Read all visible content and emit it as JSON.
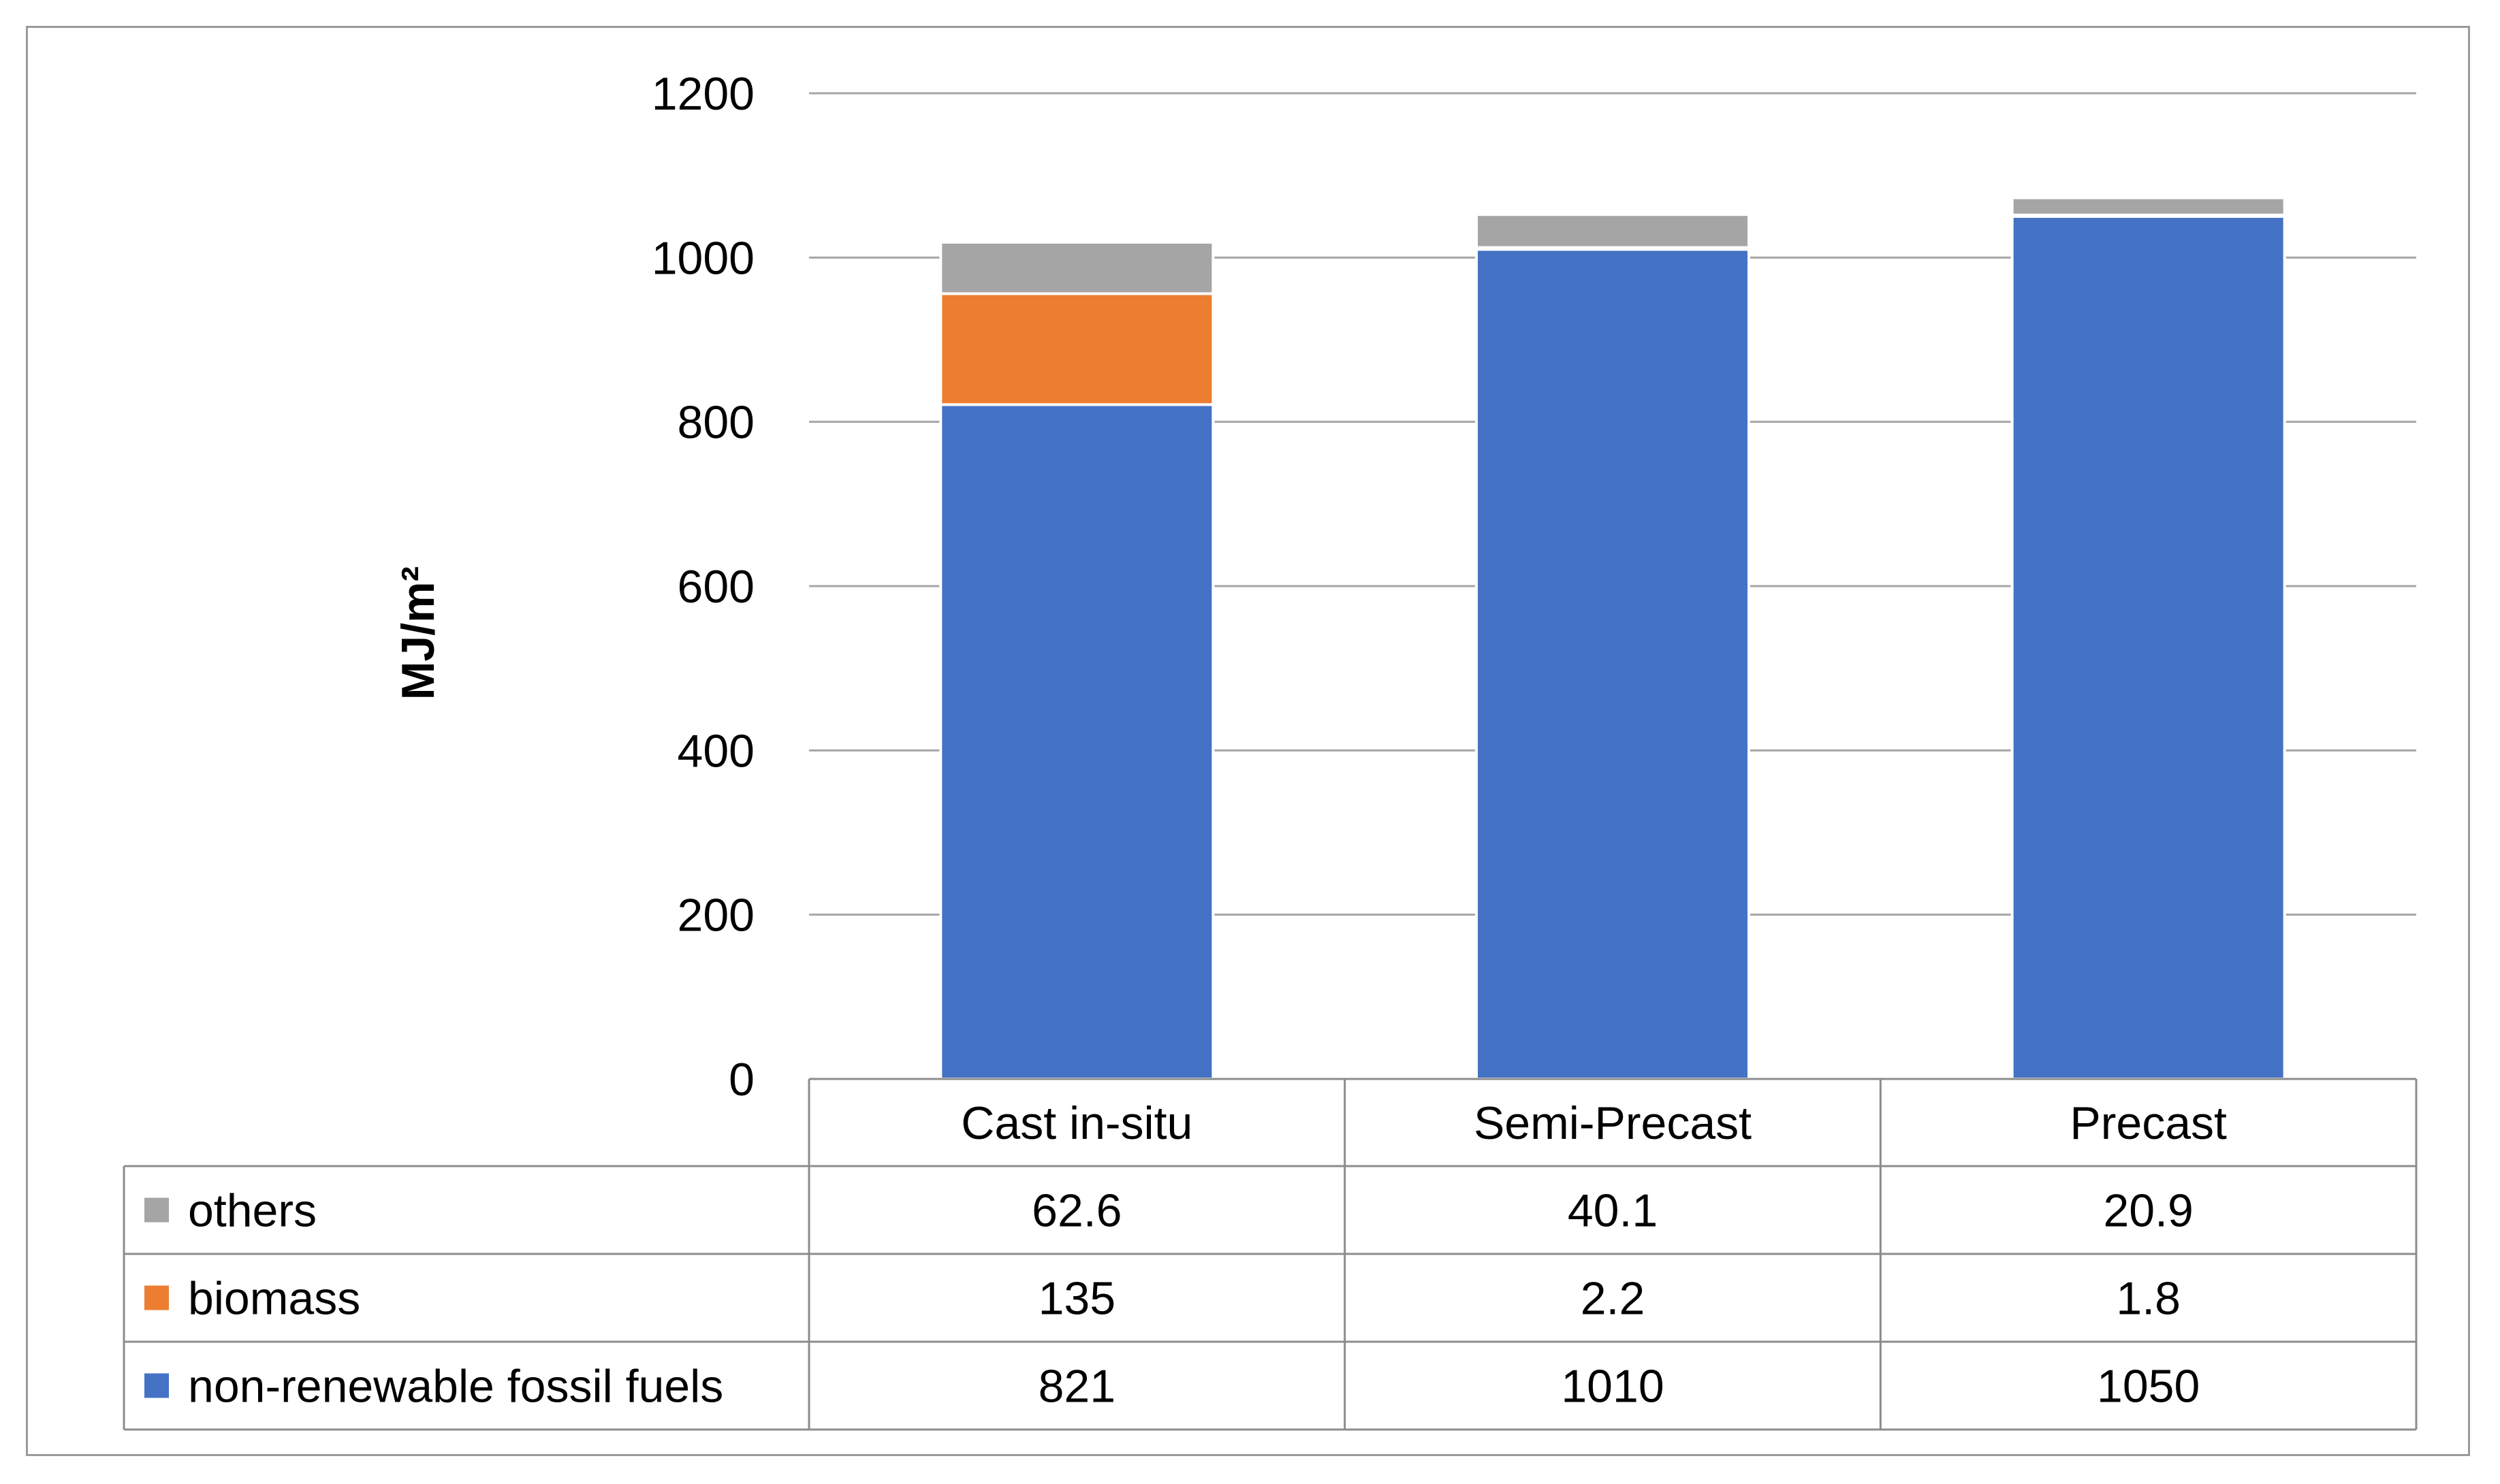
{
  "chart_data": {
    "type": "bar",
    "stacked": true,
    "title": "",
    "xlabel": "",
    "ylabel": "MJ/m²",
    "ylim": [
      0,
      1200
    ],
    "yticks": [
      "0",
      "200",
      "400",
      "600",
      "800",
      "1000",
      "1200"
    ],
    "categories": [
      "Cast in-situ",
      "Semi-Precast",
      "Precast"
    ],
    "grid": true,
    "legend": "data-table",
    "series": [
      {
        "name": "non-renewable fossil fuels",
        "color": "#4472C4",
        "values": [
          821,
          1010,
          1050
        ],
        "labels": [
          "821",
          "1010",
          "1050"
        ]
      },
      {
        "name": "biomass",
        "color": "#ED7D31",
        "values": [
          135,
          2.2,
          1.8
        ],
        "labels": [
          "135",
          "2.2",
          "1.8"
        ]
      },
      {
        "name": "others",
        "color": "#A5A5A5",
        "values": [
          62.6,
          40.1,
          20.9
        ],
        "labels": [
          "62.6",
          "40.1",
          "20.9"
        ]
      }
    ]
  }
}
